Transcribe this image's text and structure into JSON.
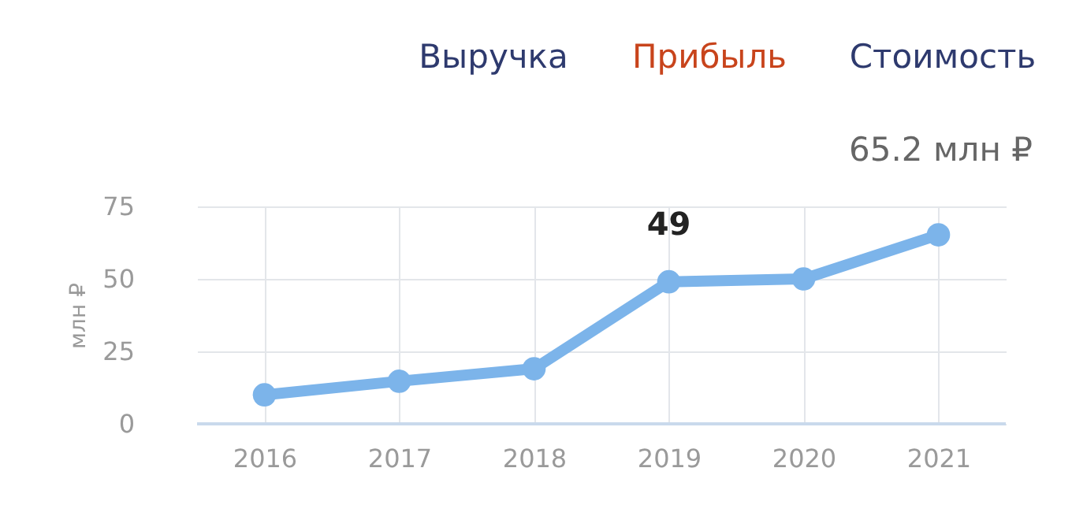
{
  "chart_data": {
    "type": "line",
    "categories": [
      "2016",
      "2017",
      "2018",
      "2019",
      "2020",
      "2021"
    ],
    "series": [
      {
        "color": "#7cb4ea",
        "values": [
          10,
          14.7,
          19,
          49,
          50,
          65.2
        ],
        "value_labels": [
          null,
          null,
          null,
          "49",
          null,
          null
        ]
      }
    ],
    "ylabel": "млн ₽",
    "ylim": [
      0,
      75
    ],
    "yticks": [
      0,
      25,
      50,
      75
    ],
    "grid": true,
    "marker": "circle",
    "line_style": "solid",
    "annotations": [
      "Выручка",
      "Прибыль",
      "Стоимость",
      "65.2 млн ₽"
    ]
  }
}
